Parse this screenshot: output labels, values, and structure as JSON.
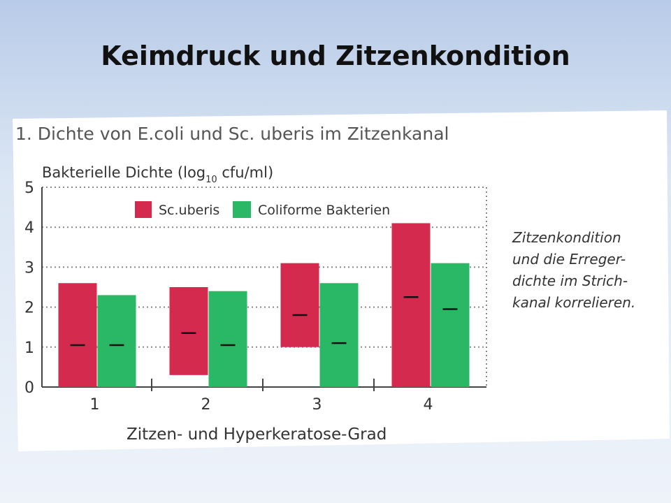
{
  "slide": {
    "title": "Keimdruck und Zitzenkondition"
  },
  "figure": {
    "heading": "1. Dichte von E.coli und Sc. uberis im Zitzenkanal",
    "ylabel_main": "Bakterielle Dichte (log",
    "ylabel_sub": "10",
    "ylabel_rest": " cfu/ml)",
    "xlabel": "Zitzen- und Hyperkeratose-Grad"
  },
  "side_note": {
    "lines": [
      "Zitzenkondition",
      "und die Erreger-",
      "dichte im Strich-",
      "kanal korrelieren."
    ]
  },
  "colors": {
    "sc_uberis": "#d42a4e",
    "coliforme": "#2bb866",
    "grid": "#888888"
  },
  "chart_data": {
    "type": "bar",
    "subtype": "floating-range-with-median",
    "categories": [
      "1",
      "2",
      "3",
      "4"
    ],
    "yticks": [
      "0",
      "1",
      "2",
      "3",
      "4",
      "5"
    ],
    "ylim": [
      0,
      5
    ],
    "grid": true,
    "legend_position": "top",
    "series": [
      {
        "name": "Sc.uberis",
        "low": [
          0.0,
          0.3,
          1.0,
          0.0
        ],
        "high": [
          2.6,
          2.5,
          3.1,
          4.1
        ],
        "median": [
          1.05,
          1.35,
          1.8,
          2.25
        ]
      },
      {
        "name": "Coliforme Bakterien",
        "low": [
          0.0,
          0.0,
          0.0,
          0.0
        ],
        "high": [
          2.3,
          2.4,
          2.6,
          3.1
        ],
        "median": [
          1.05,
          1.05,
          1.1,
          1.95
        ]
      }
    ]
  }
}
